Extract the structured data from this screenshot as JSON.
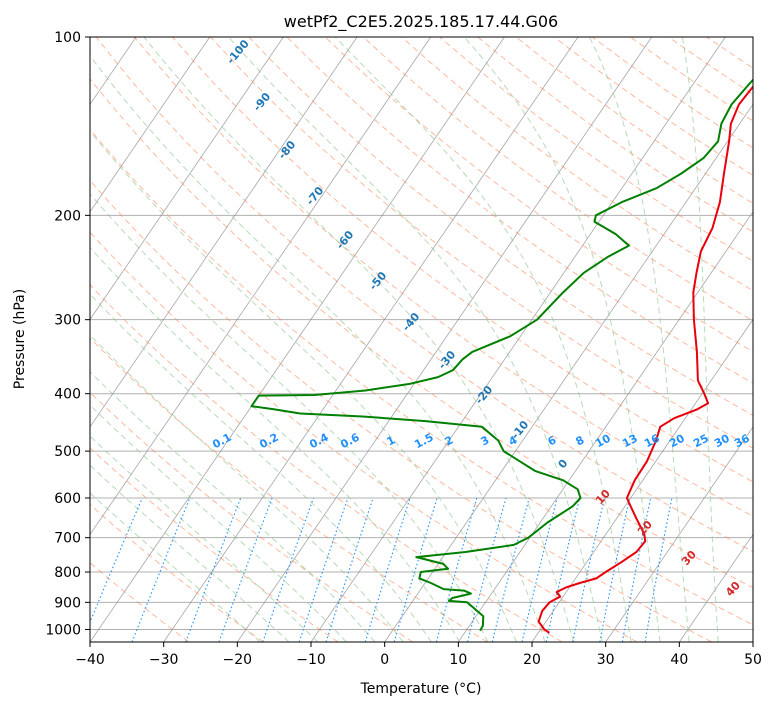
{
  "chart_data": {
    "type": "line",
    "subtype": "skew-t log-p",
    "title": "wetPf2_C2E5.2025.185.17.44.G06",
    "xlabel": "Temperature (°C)",
    "ylabel": "Pressure (hPa)",
    "xlim": [
      -40,
      50
    ],
    "ylim": [
      1050,
      100
    ],
    "y_scale": "log",
    "grid": true,
    "x_ticks": [
      -40,
      -30,
      -20,
      -10,
      0,
      10,
      20,
      30,
      40,
      50
    ],
    "y_ticks": [
      100,
      200,
      300,
      400,
      500,
      600,
      700,
      800,
      900,
      1000
    ],
    "colors": {
      "temperature": "#e8000b",
      "dewpoint": "#008000",
      "dry_adiabat": "#ff7f50",
      "moist_adiabat": "#90c890",
      "mixing_ratio": "#1e90ff",
      "isotherm": "#808080"
    },
    "series": [
      {
        "name": "",
        "role": "temperature",
        "points": [
          {
            "p": 1013,
            "x": 21.5
          },
          {
            "p": 1000,
            "x": 20.5
          },
          {
            "p": 970,
            "x": 19.0
          },
          {
            "p": 930,
            "x": 18.5
          },
          {
            "p": 900,
            "x": 18.7
          },
          {
            "p": 880,
            "x": 19.6
          },
          {
            "p": 865,
            "x": 18.7
          },
          {
            "p": 850,
            "x": 19.5
          },
          {
            "p": 835,
            "x": 21.0
          },
          {
            "p": 820,
            "x": 22.8
          },
          {
            "p": 800,
            "x": 23.5
          },
          {
            "p": 770,
            "x": 24.7
          },
          {
            "p": 740,
            "x": 25.8
          },
          {
            "p": 710,
            "x": 26.0
          },
          {
            "p": 690,
            "x": 25.2
          },
          {
            "p": 650,
            "x": 22.7
          },
          {
            "p": 620,
            "x": 20.8
          },
          {
            "p": 600,
            "x": 19.5
          },
          {
            "p": 560,
            "x": 18.9
          },
          {
            "p": 520,
            "x": 18.8
          },
          {
            "p": 480,
            "x": 18.1
          },
          {
            "p": 455,
            "x": 17.4
          },
          {
            "p": 440,
            "x": 18.5
          },
          {
            "p": 425,
            "x": 20.8
          },
          {
            "p": 415,
            "x": 21.7
          },
          {
            "p": 400,
            "x": 20.3
          },
          {
            "p": 380,
            "x": 18.2
          },
          {
            "p": 340,
            "x": 15.4
          },
          {
            "p": 300,
            "x": 12.0
          },
          {
            "p": 270,
            "x": 9.4
          },
          {
            "p": 250,
            "x": 8.0
          },
          {
            "p": 230,
            "x": 6.6
          },
          {
            "p": 210,
            "x": 6.0
          },
          {
            "p": 190,
            "x": 4.6
          },
          {
            "p": 170,
            "x": 2.5
          },
          {
            "p": 150,
            "x": 0.2
          },
          {
            "p": 140,
            "x": -1.2
          },
          {
            "p": 130,
            "x": -1.9
          },
          {
            "p": 120,
            "x": -1.6
          },
          {
            "p": 110,
            "x": 1.2
          },
          {
            "p": 100,
            "x": 6.4
          }
        ]
      },
      {
        "name": "",
        "role": "dewpoint",
        "points": [
          {
            "p": 1005,
            "x": 11.9
          },
          {
            "p": 985,
            "x": 11.8
          },
          {
            "p": 950,
            "x": 11.0
          },
          {
            "p": 900,
            "x": 7.5
          },
          {
            "p": 895,
            "x": 4.9
          },
          {
            "p": 885,
            "x": 5.1
          },
          {
            "p": 870,
            "x": 7.2
          },
          {
            "p": 860,
            "x": 6.0
          },
          {
            "p": 855,
            "x": 3.1
          },
          {
            "p": 835,
            "x": 0.8
          },
          {
            "p": 820,
            "x": -1.2
          },
          {
            "p": 800,
            "x": -1.6
          },
          {
            "p": 790,
            "x": 1.8
          },
          {
            "p": 775,
            "x": 0.7
          },
          {
            "p": 755,
            "x": -3.6
          },
          {
            "p": 740,
            "x": 2.6
          },
          {
            "p": 720,
            "x": 8.5
          },
          {
            "p": 700,
            "x": 9.8
          },
          {
            "p": 660,
            "x": 11.0
          },
          {
            "p": 620,
            "x": 12.9
          },
          {
            "p": 600,
            "x": 13.2
          },
          {
            "p": 580,
            "x": 12.0
          },
          {
            "p": 560,
            "x": 9.2
          },
          {
            "p": 540,
            "x": 4.5
          },
          {
            "p": 520,
            "x": 1.5
          },
          {
            "p": 500,
            "x": -1.6
          },
          {
            "p": 480,
            "x": -3.3
          },
          {
            "p": 455,
            "x": -6.8
          },
          {
            "p": 445,
            "x": -15.0
          },
          {
            "p": 437,
            "x": -24.0
          },
          {
            "p": 432,
            "x": -32.7
          },
          {
            "p": 425,
            "x": -36.7
          },
          {
            "p": 420,
            "x": -40
          },
          {
            "p": 403,
            "x": -40
          },
          {
            "p": 402,
            "x": -32.5
          },
          {
            "p": 395,
            "x": -26.0
          },
          {
            "p": 385,
            "x": -20.6
          },
          {
            "p": 375,
            "x": -17.4
          },
          {
            "p": 365,
            "x": -16.0
          },
          {
            "p": 350,
            "x": -15.7
          },
          {
            "p": 340,
            "x": -15.1
          },
          {
            "p": 320,
            "x": -11.4
          },
          {
            "p": 300,
            "x": -9.3
          },
          {
            "p": 270,
            "x": -8.3
          },
          {
            "p": 250,
            "x": -7.3
          },
          {
            "p": 235,
            "x": -5.5
          },
          {
            "p": 225,
            "x": -3.7
          },
          {
            "p": 215,
            "x": -6.6
          },
          {
            "p": 205,
            "x": -10.6
          },
          {
            "p": 200,
            "x": -11.0
          },
          {
            "p": 190,
            "x": -8.7
          },
          {
            "p": 180,
            "x": -5.3
          },
          {
            "p": 170,
            "x": -3.3
          },
          {
            "p": 160,
            "x": -1.7
          },
          {
            "p": 150,
            "x": -1.3
          },
          {
            "p": 140,
            "x": -2.5
          },
          {
            "p": 130,
            "x": -2.9
          },
          {
            "p": 120,
            "x": -2.4
          },
          {
            "p": 110,
            "x": -1.7
          },
          {
            "p": 100,
            "x": 0.6
          }
        ]
      }
    ],
    "dry_adiabat_labels": [
      "-100",
      "-90",
      "-80",
      "-70",
      "-60",
      "-50",
      "-40",
      "-30",
      "-20",
      "-10",
      "0"
    ],
    "moist_adiabat_labels": [
      "10",
      "20",
      "30",
      "40"
    ],
    "mixing_ratio_labels": [
      "0.1",
      "0.2",
      "0.4",
      "0.6",
      "1",
      "1.5",
      "2",
      "3",
      "4",
      "6",
      "8",
      "10",
      "13",
      "16",
      "20",
      "25",
      "30",
      "36"
    ]
  }
}
